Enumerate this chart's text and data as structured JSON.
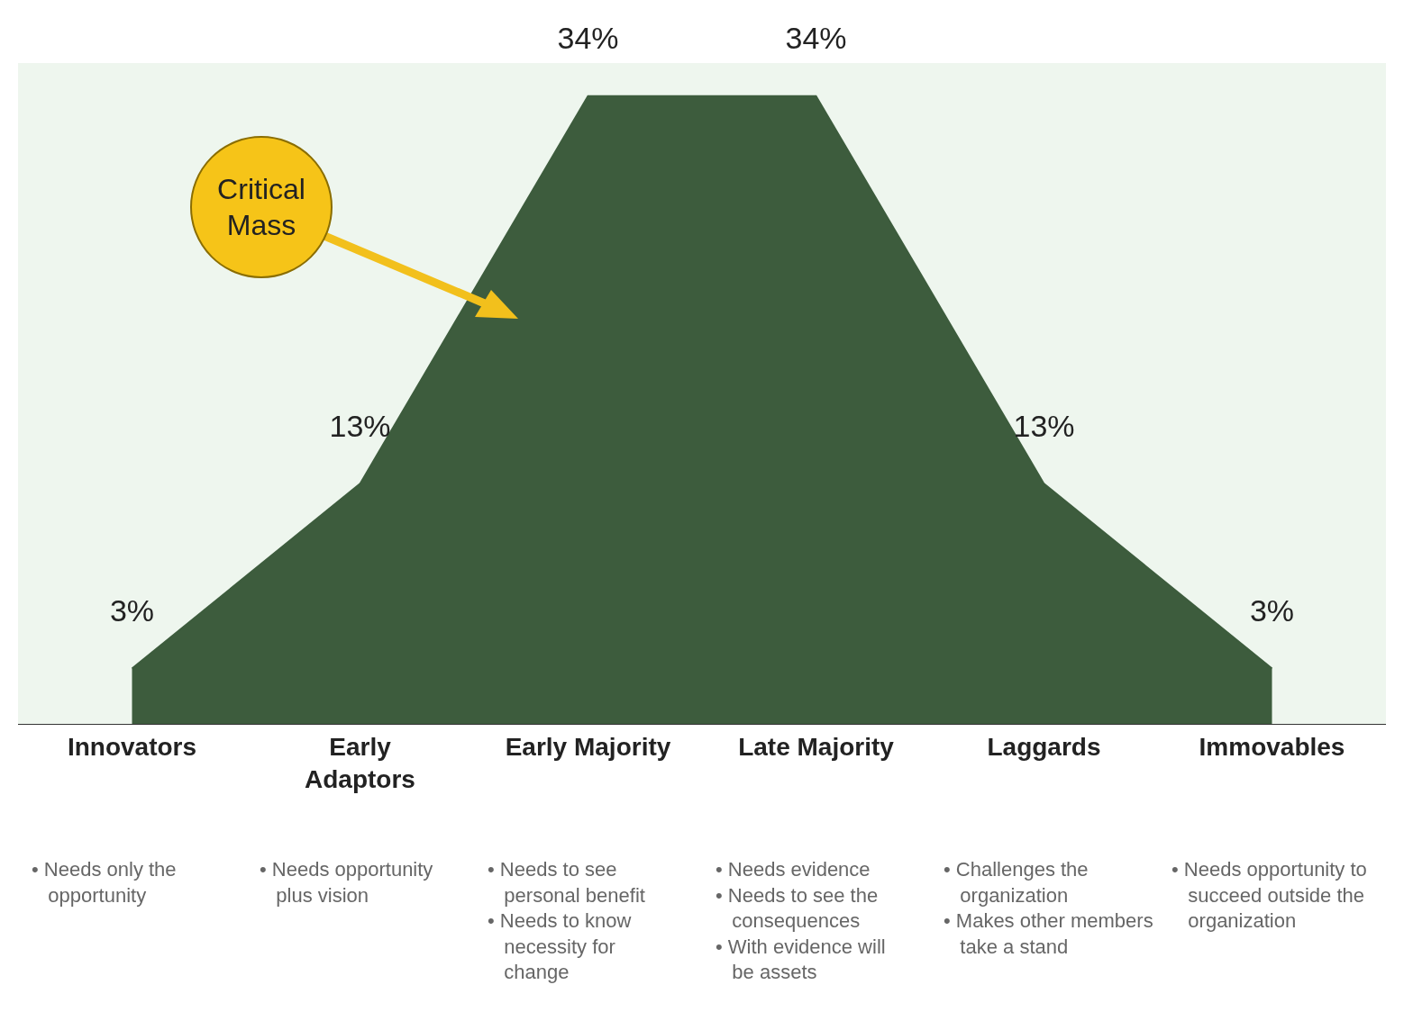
{
  "chart_data": {
    "type": "area",
    "categories": [
      "Innovators",
      "Early\nAdaptors",
      "Early Majority",
      "Late Majority",
      "Laggards",
      "Immovables"
    ],
    "values": [
      3,
      13,
      34,
      34,
      13,
      3
    ],
    "value_labels": [
      "3%",
      "13%",
      "34%",
      "34%",
      "13%",
      "3%"
    ],
    "color": "#3d5c3d",
    "grid": false,
    "tick_labels": "x",
    "annotations": [
      "• Needs only the opportunity",
      "• Needs opportunity plus vision",
      "• Needs to see personal benefit\n• Needs to know necessity for change",
      "• Needs evidence\n• Needs to see the consequences\n• With evidence will be assets",
      "• Challenges the organization\n• Makes other members take a stand",
      "• Needs opportunity to succeed outside the organization",
      "Critical\nMass"
    ]
  }
}
